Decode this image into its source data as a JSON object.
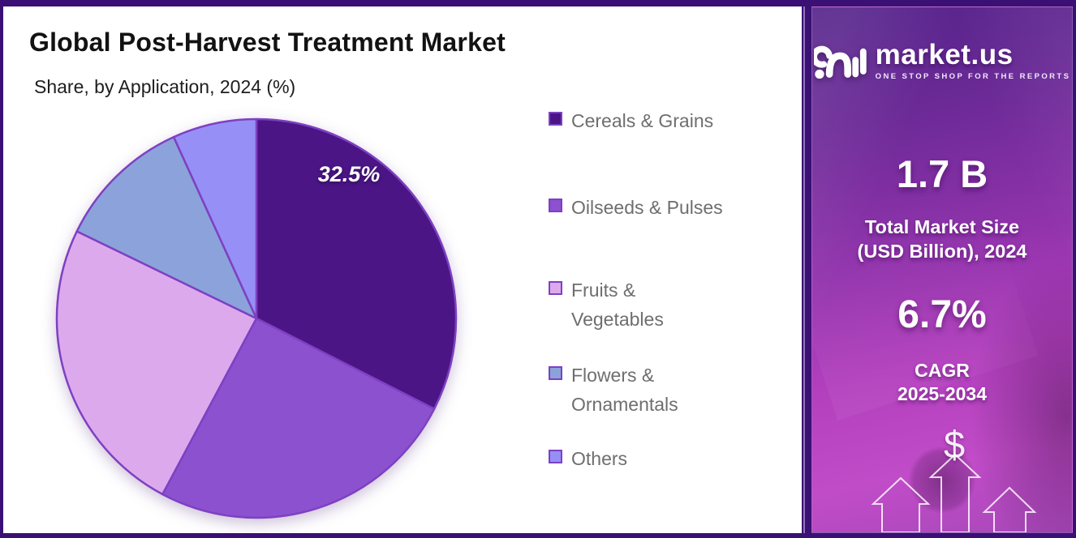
{
  "header": {
    "title": "Global Post-Harvest Treatment Market",
    "subtitle": "Share, by Application, 2024 (%)"
  },
  "chart_data": {
    "type": "pie",
    "title": "Global Post-Harvest Treatment Market",
    "subtitle": "Share, by Application, 2024 (%)",
    "unit": "%",
    "year": "2024",
    "categories": [
      "Cereals & Grains",
      "Oilseeds & Pulses",
      "Fruits & Vegetables",
      "Flowers & Ornamentals",
      "Others"
    ],
    "values": [
      32.5,
      25.3,
      24.4,
      11.0,
      6.8
    ],
    "labels": [
      "32.5%",
      "",
      "",
      "",
      ""
    ],
    "colors": [
      "#4b1586",
      "#8b51cf",
      "#dcaaec",
      "#8ba3da",
      "#968ff6"
    ],
    "stroke_color": "#7e40c3",
    "start_angle_deg": 0,
    "direction": "clockwise",
    "legend_position": "right",
    "legend": [
      "Cereals & Grains",
      "Oilseeds & Pulses",
      "Fruits &\nVegetables",
      "Flowers &\nOrnamentals",
      "Others"
    ],
    "note": "Only the 32.5% slice (Cereals & Grains) carries an on-chart data label; other values estimated from slice angles."
  },
  "sidebar": {
    "logo": {
      "brand": "market.us",
      "tagline": "ONE STOP SHOP FOR THE REPORTS"
    },
    "market_size_value": "1.7 B",
    "market_size_label": "Total Market Size\n(USD Billion), 2024",
    "cagr_value": "6.7%",
    "cagr_label": "CAGR\n2025-2034",
    "dollar_sign": "$"
  }
}
